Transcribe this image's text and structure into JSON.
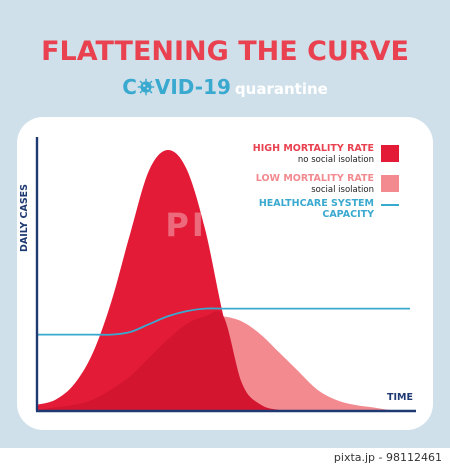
{
  "header": {
    "title": "FLATTENING THE CURVE",
    "covid_label": "C●VID-19",
    "covid_prefix": "C",
    "covid_suffix": "VID-19",
    "subtitle": "quarantine"
  },
  "chart_data": {
    "type": "area",
    "ylabel": "DAILY CASES",
    "xlabel": "TIME",
    "x": [
      0,
      0.05,
      0.1,
      0.15,
      0.2,
      0.25,
      0.3,
      0.35,
      0.4,
      0.45,
      0.5,
      0.55,
      0.6,
      0.65,
      0.7,
      0.75,
      0.8,
      0.85,
      0.9,
      0.95,
      1.0
    ],
    "series": [
      {
        "name": "HIGH MORTALITY RATE",
        "note": "no social isolation",
        "color": "#e31b37",
        "values": [
          0.02,
          0.04,
          0.1,
          0.22,
          0.42,
          0.68,
          0.92,
          1.0,
          0.93,
          0.7,
          0.36,
          0.1,
          0.02,
          0.0,
          0.0,
          0.0,
          0.0,
          0.0,
          0.0,
          0.0,
          0.0
        ]
      },
      {
        "name": "LOW MORTALITY RATE",
        "note": "social isolation",
        "color": "#f28a90",
        "values": [
          0.0,
          0.01,
          0.02,
          0.04,
          0.08,
          0.13,
          0.2,
          0.27,
          0.33,
          0.36,
          0.36,
          0.34,
          0.29,
          0.22,
          0.15,
          0.08,
          0.04,
          0.02,
          0.01,
          0.0,
          0.0
        ]
      },
      {
        "name": "HEALTHCARE SYSTEM CAPACITY",
        "color": "#3aa9cf",
        "values": [
          0.29,
          0.29,
          0.29,
          0.29,
          0.29,
          0.3,
          0.33,
          0.36,
          0.38,
          0.39,
          0.39,
          0.39,
          0.39,
          0.39,
          0.39,
          0.39,
          0.39,
          0.39,
          0.39,
          0.39,
          0.39
        ]
      }
    ],
    "overlap_color": "#d41530",
    "legend": [
      {
        "title": "HIGH MORTALITY RATE",
        "subtitle": "no social isolation",
        "swatch": "#e31b37",
        "title_color": "#e9414f"
      },
      {
        "title": "LOW MORTALITY RATE",
        "subtitle": "social isolation",
        "swatch": "#f28a90",
        "title_color": "#f28a90"
      },
      {
        "title": "HEALTHCARE SYSTEM\nCAPACITY",
        "subtitle": "",
        "swatch": "#3aa9cf",
        "title_color": "#3aa9cf"
      }
    ],
    "legend_position": "top-right",
    "grid": false,
    "axis_color": "#1f3a73"
  },
  "footer": {
    "credit": "pixta.jp - 98112461"
  },
  "watermark": {
    "text": "PIXTA"
  }
}
